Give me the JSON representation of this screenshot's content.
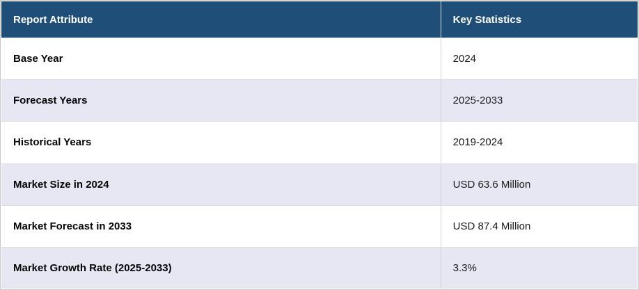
{
  "table": {
    "header": {
      "attribute": "Report Attribute",
      "statistic": "Key Statistics"
    },
    "rows": [
      {
        "attribute": "Base Year",
        "value": "2024"
      },
      {
        "attribute": "Forecast Years",
        "value": "2025-2033"
      },
      {
        "attribute": "Historical Years",
        "value": "2019-2024"
      },
      {
        "attribute": "Market Size in 2024",
        "value": "USD 63.6 Million"
      },
      {
        "attribute": "Market Forecast in 2033",
        "value": "USD 87.4 Million"
      },
      {
        "attribute": "Market Growth Rate (2025-2033)",
        "value": "3.3%"
      }
    ]
  },
  "colors": {
    "header_bg": "#1f4e79",
    "header_text": "#ffffff",
    "row_bg": "#ffffff",
    "row_alt_bg": "#e6e7f2",
    "border": "#c9c9c9",
    "body_text": "#111111"
  },
  "chart_data": {
    "type": "table",
    "title": "Report Attribute / Key Statistics summary",
    "columns": [
      "Report Attribute",
      "Key Statistics"
    ],
    "rows": [
      [
        "Base Year",
        "2024"
      ],
      [
        "Forecast Years",
        "2025-2033"
      ],
      [
        "Historical Years",
        "2019-2024"
      ],
      [
        "Market Size in 2024",
        "USD 63.6 Million"
      ],
      [
        "Market Forecast in 2033",
        "USD 87.4 Million"
      ],
      [
        "Market Growth Rate (2025-2033)",
        "3.3%"
      ]
    ],
    "base_year": 2024,
    "forecast_years": "2025-2033",
    "historical_years": "2019-2024",
    "market_size_2024_usd_million": 63.6,
    "market_forecast_2033_usd_million": 87.4,
    "market_growth_rate_percent": 3.3
  }
}
